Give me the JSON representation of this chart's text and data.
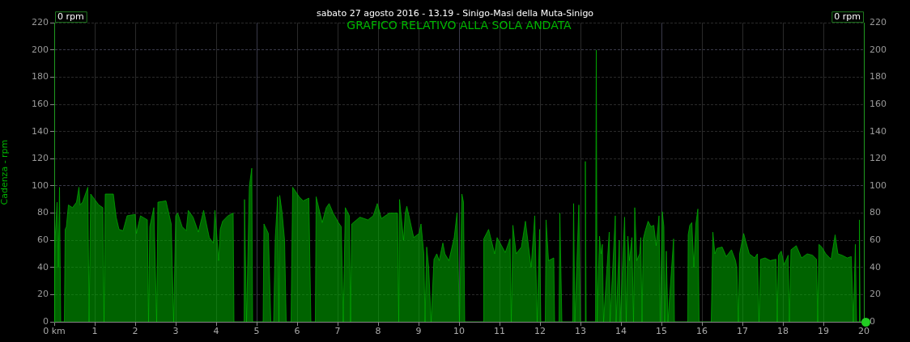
{
  "chart_data": {
    "type": "area",
    "title": "sabato 27 agosto 2016 - 13.19 - Sinigo-Masi della Muta-Sinigo",
    "subtitle": "GRAFICO RELATIVO ALLA SOLA ANDATA",
    "ylabel": "Cadenza - rpm",
    "annotations": [
      "0 rpm",
      "0 rpm"
    ],
    "x": [
      0,
      0.02,
      0.07,
      0.1,
      0.13,
      0.16,
      0.25,
      0.27,
      0.3,
      0.35,
      0.45,
      0.55,
      0.61,
      0.64,
      0.7,
      0.83,
      0.86,
      0.9,
      1.0,
      1.1,
      1.2,
      1.23,
      1.26,
      1.46,
      1.53,
      1.6,
      1.7,
      1.8,
      2.0,
      2.03,
      2.13,
      2.3,
      2.33,
      2.36,
      2.46,
      2.53,
      2.56,
      2.76,
      2.89,
      2.95,
      3.0,
      3.05,
      3.16,
      3.26,
      3.31,
      3.43,
      3.56,
      3.69,
      3.83,
      3.93,
      3.97,
      4.06,
      4.1,
      4.16,
      4.29,
      4.42,
      4.44,
      4.69,
      4.7,
      4.75,
      4.82,
      4.88,
      4.9,
      5.16,
      5.18,
      5.29,
      5.35,
      5.42,
      5.46,
      5.52,
      5.55,
      5.57,
      5.63,
      5.69,
      5.73,
      5.85,
      5.89,
      6.05,
      6.15,
      6.29,
      6.34,
      6.45,
      6.47,
      6.62,
      6.72,
      6.79,
      6.89,
      7.02,
      7.09,
      7.14,
      7.19,
      7.29,
      7.32,
      7.35,
      7.55,
      7.75,
      7.88,
      7.98,
      8.08,
      8.28,
      8.48,
      8.51,
      8.53,
      8.63,
      8.67,
      8.71,
      8.88,
      9.01,
      9.06,
      9.13,
      9.16,
      9.2,
      9.25,
      9.31,
      9.38,
      9.45,
      9.51,
      9.6,
      9.65,
      9.75,
      9.88,
      9.95,
      10.01,
      10.07,
      10.11,
      10.14,
      10.6,
      10.61,
      10.73,
      10.88,
      10.94,
      11.14,
      11.26,
      11.29,
      11.33,
      11.41,
      11.54,
      11.64,
      11.78,
      11.87,
      11.93,
      11.99,
      12.02,
      12.13,
      12.15,
      12.21,
      12.34,
      12.36,
      12.47,
      12.49,
      12.54,
      12.81,
      12.83,
      12.86,
      12.96,
      13.0,
      13.1,
      13.12,
      13.14,
      13.37,
      13.39,
      13.41,
      13.47,
      13.51,
      13.54,
      13.57,
      13.71,
      13.73,
      13.86,
      13.88,
      13.96,
      13.98,
      14.09,
      14.13,
      14.17,
      14.21,
      14.27,
      14.31,
      14.34,
      14.39,
      14.46,
      14.49,
      14.52,
      14.55,
      14.6,
      14.67,
      14.74,
      14.81,
      14.87,
      14.94,
      14.97,
      15.02,
      15.06,
      15.08,
      15.12,
      15.16,
      15.3,
      15.32,
      15.65,
      15.66,
      15.7,
      15.75,
      15.8,
      15.85,
      15.9,
      15.93,
      16.23,
      16.27,
      16.32,
      16.37,
      16.5,
      16.6,
      16.73,
      16.83,
      16.86,
      16.9,
      16.93,
      17.03,
      17.17,
      17.3,
      17.37,
      17.41,
      17.45,
      17.56,
      17.69,
      17.83,
      17.86,
      17.89,
      17.96,
      18.03,
      18.13,
      18.16,
      18.2,
      18.33,
      18.46,
      18.6,
      18.73,
      18.83,
      18.86,
      18.89,
      18.96,
      19.06,
      19.19,
      19.29,
      19.36,
      19.46,
      19.59,
      19.69,
      19.74,
      19.79,
      19.82,
      19.88,
      19.89,
      19.91,
      20
    ],
    "series": [
      {
        "color": "#00b400",
        "values": [
          0,
          60,
          88,
          40,
          99,
          0,
          0,
          68,
          70,
          86,
          84,
          88,
          99,
          86,
          88,
          99,
          0,
          94,
          90,
          86,
          84,
          0,
          94,
          94,
          77,
          68,
          67,
          78,
          79,
          65,
          78,
          75,
          0,
          70,
          84,
          0,
          88,
          89,
          72,
          0,
          78,
          80,
          70,
          67,
          82,
          77,
          66,
          82,
          62,
          58,
          82,
          45,
          68,
          74,
          78,
          80,
          0,
          0,
          90,
          0,
          100,
          113,
          0,
          0,
          72,
          65,
          0,
          0,
          62,
          92,
          0,
          93,
          80,
          60,
          0,
          0,
          99,
          92,
          89,
          91,
          0,
          0,
          92,
          73,
          84,
          87,
          80,
          73,
          70,
          0,
          84,
          78,
          0,
          72,
          77,
          75,
          78,
          87,
          76,
          80,
          80,
          0,
          90,
          60,
          80,
          85,
          62,
          65,
          72,
          50,
          0,
          55,
          40,
          0,
          46,
          50,
          45,
          58,
          50,
          45,
          62,
          80,
          0,
          94,
          88,
          0,
          0,
          61,
          68,
          50,
          62,
          51,
          61,
          0,
          71,
          50,
          55,
          74,
          40,
          78,
          0,
          68,
          0,
          0,
          75,
          45,
          47,
          0,
          0,
          80,
          0,
          0,
          87,
          0,
          86,
          0,
          0,
          118,
          0,
          0,
          200,
          0,
          63,
          50,
          57,
          0,
          66,
          0,
          78,
          0,
          60,
          0,
          77,
          0,
          63,
          45,
          62,
          0,
          84,
          45,
          50,
          62,
          0,
          61,
          67,
          74,
          70,
          71,
          56,
          78,
          0,
          81,
          70,
          0,
          52,
          0,
          61,
          0,
          0,
          64,
          71,
          73,
          40,
          72,
          83,
          0,
          0,
          66,
          50,
          54,
          55,
          48,
          53,
          45,
          40,
          0,
          50,
          65,
          50,
          47,
          50,
          0,
          46,
          47,
          45,
          46,
          0,
          49,
          52,
          42,
          49,
          0,
          53,
          56,
          47,
          50,
          49,
          46,
          0,
          57,
          55,
          50,
          46,
          64,
          50,
          49,
          47,
          48,
          0,
          57,
          0,
          0,
          75,
          0,
          0
        ]
      }
    ],
    "xlim": [
      0,
      20
    ],
    "xticks": [
      {
        "value": 0,
        "label": "0 km"
      },
      1,
      2,
      3,
      4,
      5,
      6,
      7,
      8,
      9,
      10,
      11,
      12,
      13,
      14,
      15,
      16,
      17,
      18,
      19,
      20
    ],
    "ylim": [
      0,
      220
    ],
    "yticks": [
      0,
      20,
      40,
      60,
      80,
      100,
      120,
      140,
      160,
      180,
      200,
      220
    ],
    "y2lim": [
      0,
      220
    ],
    "y2ticks": [
      0,
      20,
      40,
      60,
      80,
      100,
      120,
      140,
      160,
      180,
      200,
      220
    ],
    "grid": true
  }
}
